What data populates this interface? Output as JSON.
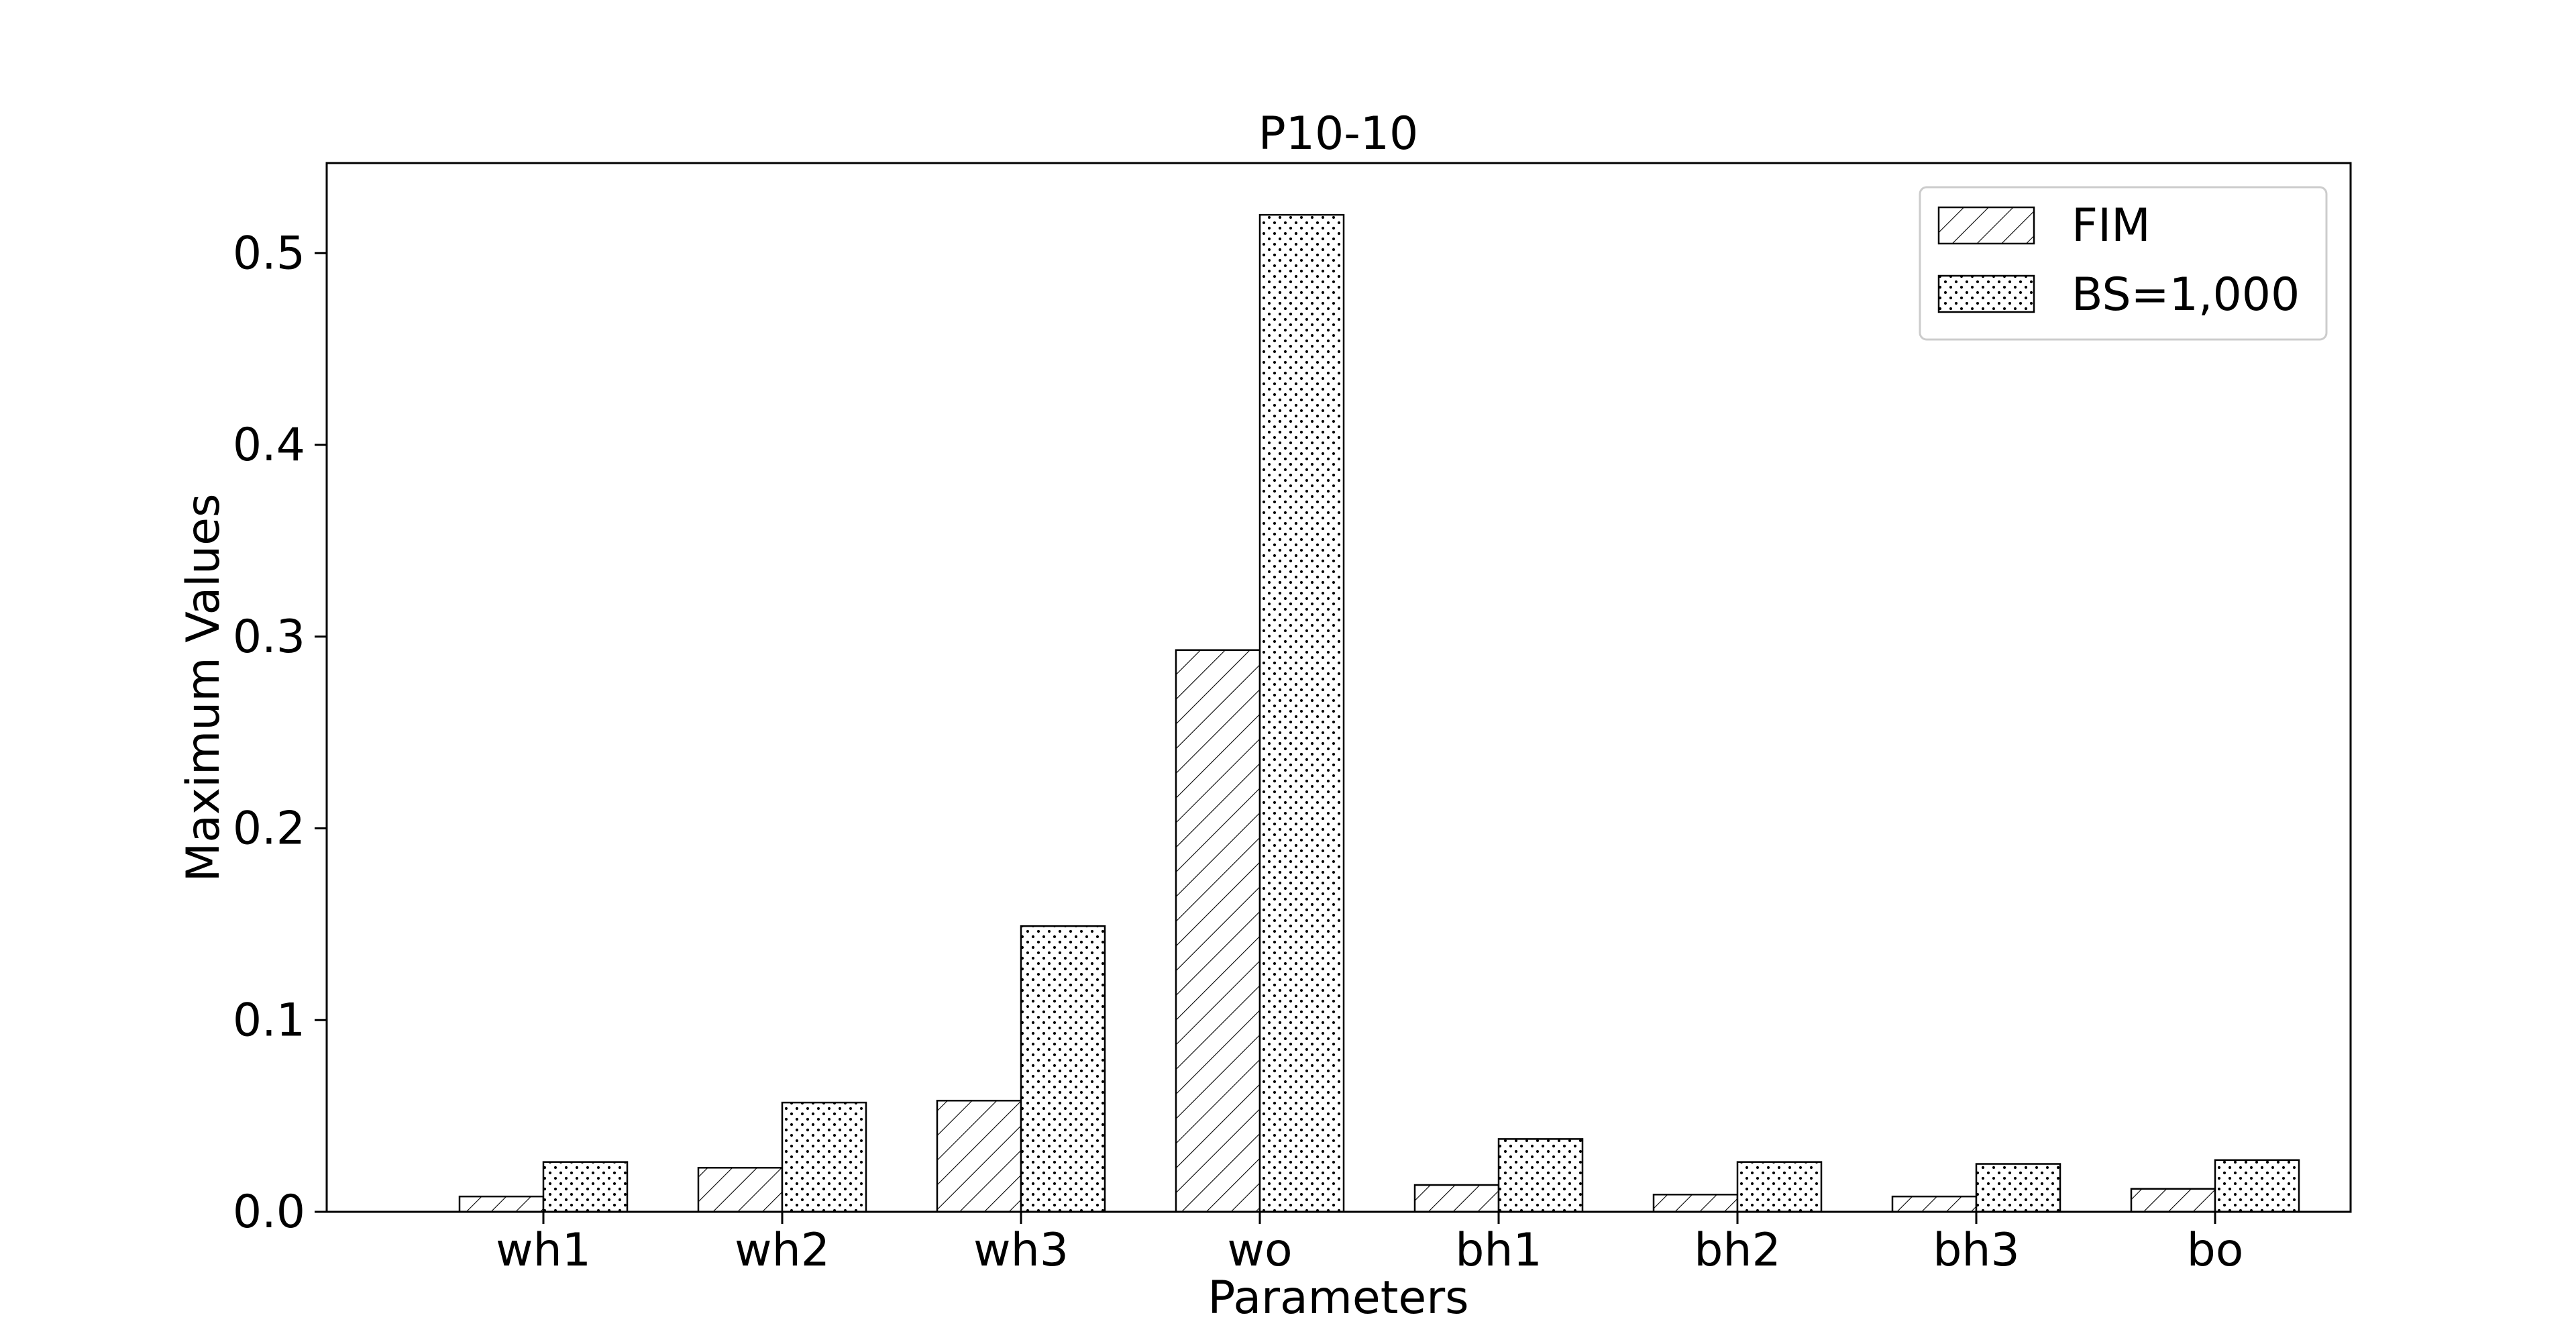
{
  "chart_data": {
    "type": "bar",
    "title": "P10-10",
    "xlabel": "Parameters",
    "ylabel": "Maximum Values",
    "categories": [
      "wh1",
      "wh2",
      "wh3",
      "wo",
      "bh1",
      "bh2",
      "bh3",
      "bo"
    ],
    "series": [
      {
        "name": "FIM",
        "values": [
          0.008,
          0.023,
          0.058,
          0.293,
          0.014,
          0.009,
          0.008,
          0.012
        ],
        "pattern": "hatch"
      },
      {
        "name": "BS=1,000",
        "values": [
          0.026,
          0.057,
          0.149,
          0.52,
          0.038,
          0.026,
          0.025,
          0.027
        ],
        "pattern": "dots"
      }
    ],
    "ylim": [
      0,
      0.547
    ],
    "yticks": [
      "0.0",
      "0.1",
      "0.2",
      "0.3",
      "0.4",
      "0.5"
    ],
    "legend_position": "top-right",
    "grid": false
  }
}
